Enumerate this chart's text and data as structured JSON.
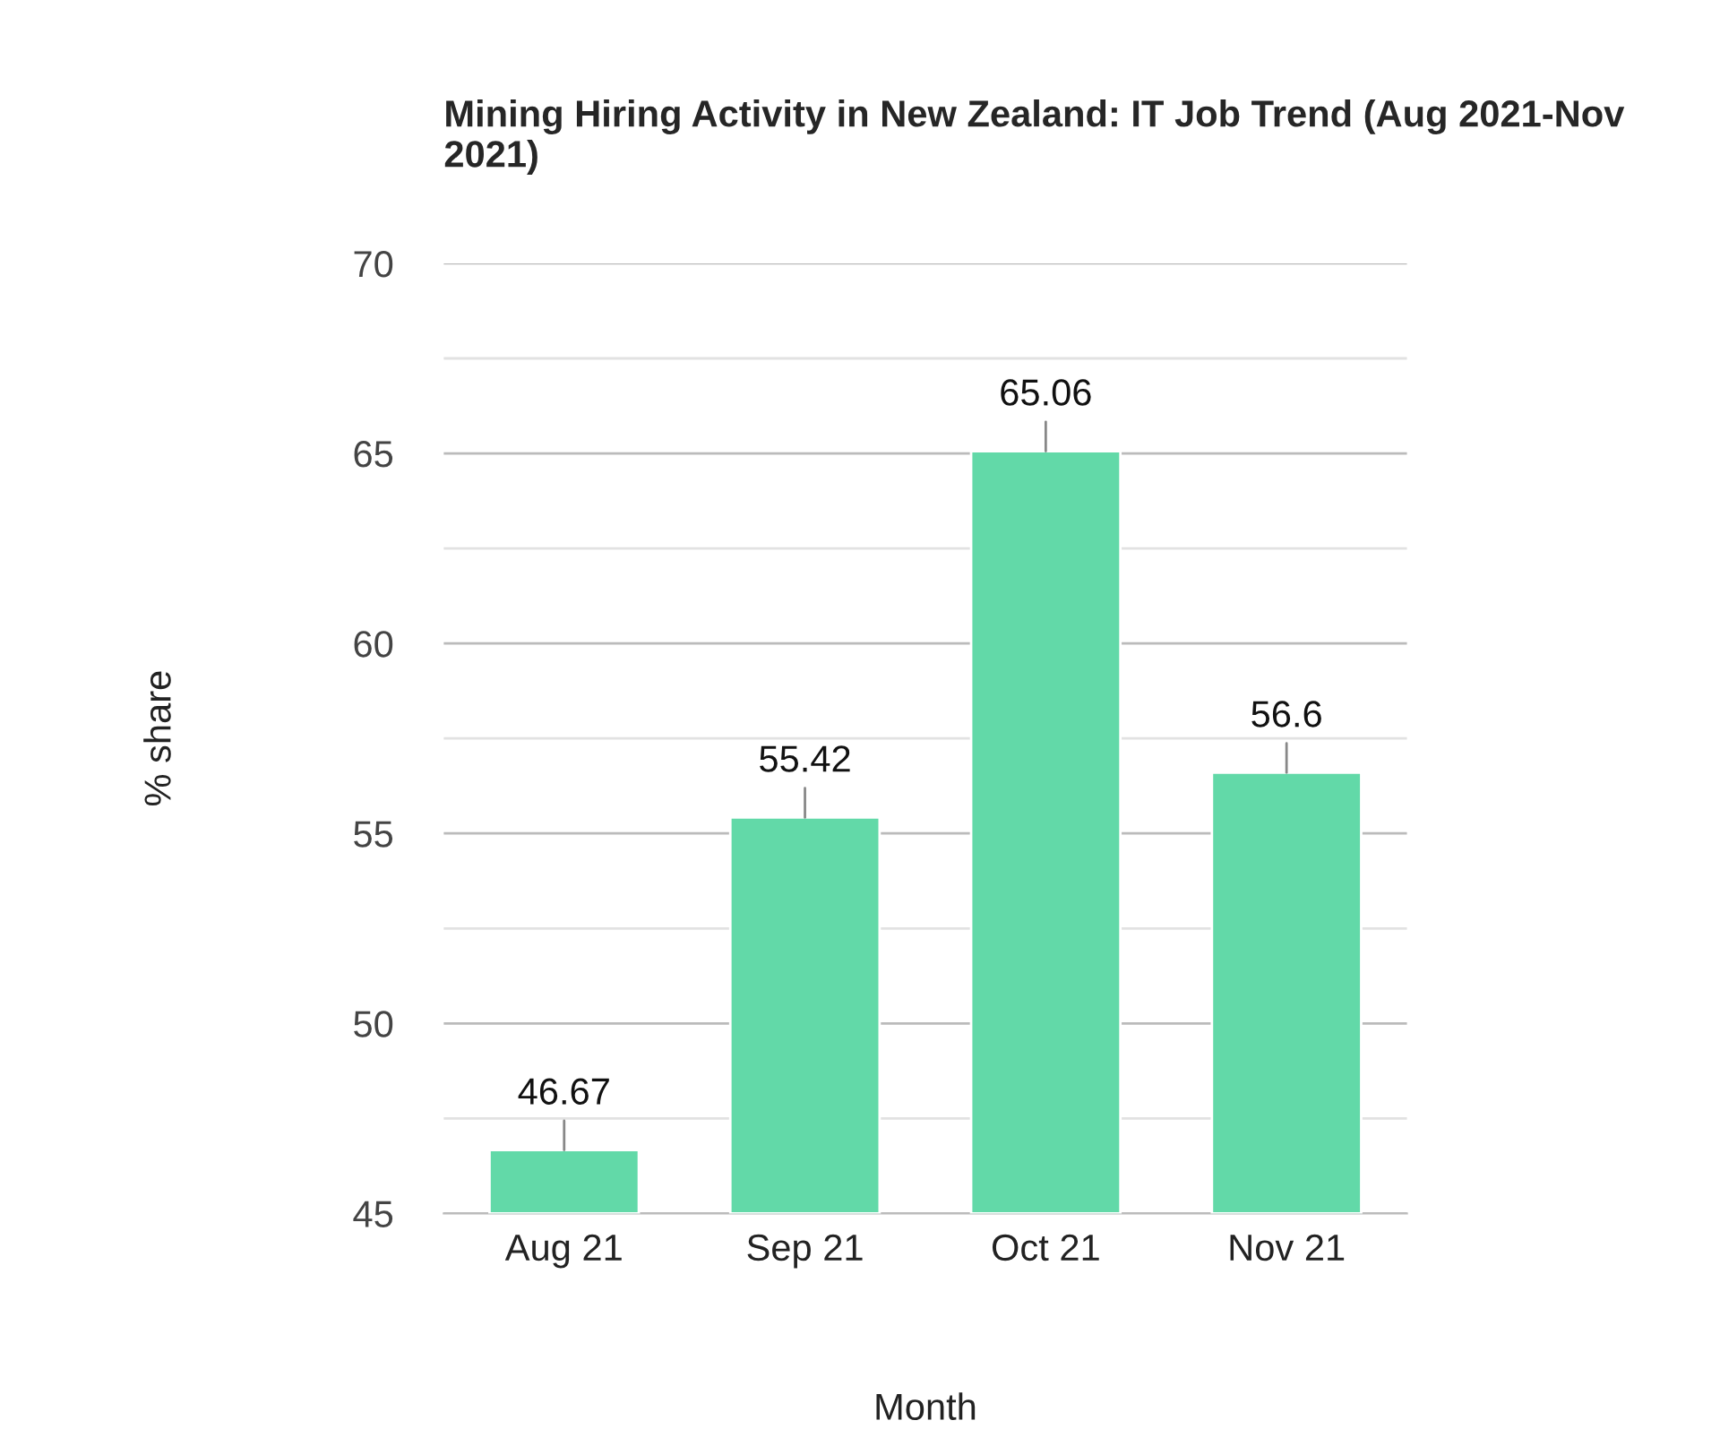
{
  "chart_data": {
    "type": "bar",
    "title": "Mining Hiring Activity in New Zealand: IT Job Trend (Aug 2021-Nov 2021)",
    "xlabel": "Month",
    "ylabel": "% share",
    "categories": [
      "Aug 21",
      "Sep 21",
      "Oct 21",
      "Nov 21"
    ],
    "values": [
      46.67,
      55.42,
      65.06,
      56.6
    ],
    "color": "#62d9a8",
    "ylim": [
      45,
      70
    ],
    "yticks": [
      45,
      {
        "value": 47.5,
        "label": null
      },
      50,
      {
        "value": 52.5,
        "label": null
      },
      55,
      {
        "value": 57.5,
        "label": null
      },
      60,
      {
        "value": 62.5,
        "label": null
      },
      65,
      {
        "value": 67.5,
        "label": null
      },
      70
    ],
    "grid": "y",
    "data_labels": true,
    "legend": false
  }
}
